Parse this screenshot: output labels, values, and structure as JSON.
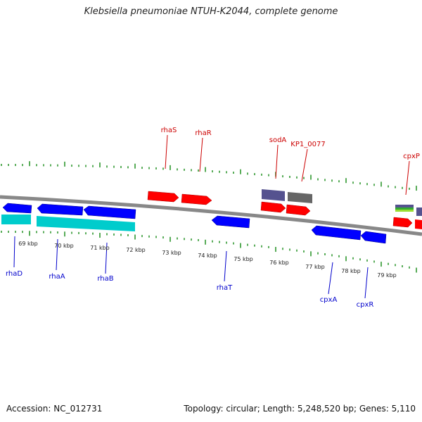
{
  "header": {
    "title": "Klebsiella pneumoniae NTUH-K2044, complete genome"
  },
  "footer": {
    "accession": "Accession: NC_012731",
    "topology": "Topology: circular; Length: 5,248,520 bp; Genes: 5,110"
  },
  "colors": {
    "forward": "#ff0000",
    "reverse": "#0000ff",
    "cds_cyan": "#00cccc",
    "dark_purple": "#55528f",
    "dark_gray": "#666666",
    "ruler": "#118811",
    "backbone": "#888888",
    "label_forward": "#cc0000",
    "label_reverse": "#0000cc"
  },
  "scale": {
    "unit": "kbp",
    "ticks": [
      {
        "label": "69 kbp"
      },
      {
        "label": "70 kbp"
      },
      {
        "label": "71 kbp"
      },
      {
        "label": "72 kbp"
      },
      {
        "label": "73 kbp"
      },
      {
        "label": "74 kbp"
      },
      {
        "label": "75 kbp"
      },
      {
        "label": "76 kbp"
      },
      {
        "label": "77 kbp"
      },
      {
        "label": "78 kbp"
      },
      {
        "label": "79 kbp"
      }
    ]
  },
  "forward_labels": [
    "rhaS",
    "rhaR",
    "sodA",
    "KP1_0077",
    "cpxP"
  ],
  "reverse_labels": [
    "rhaD",
    "rhaA",
    "rhaB",
    "rhaT",
    "cpxA",
    "cpxR"
  ]
}
